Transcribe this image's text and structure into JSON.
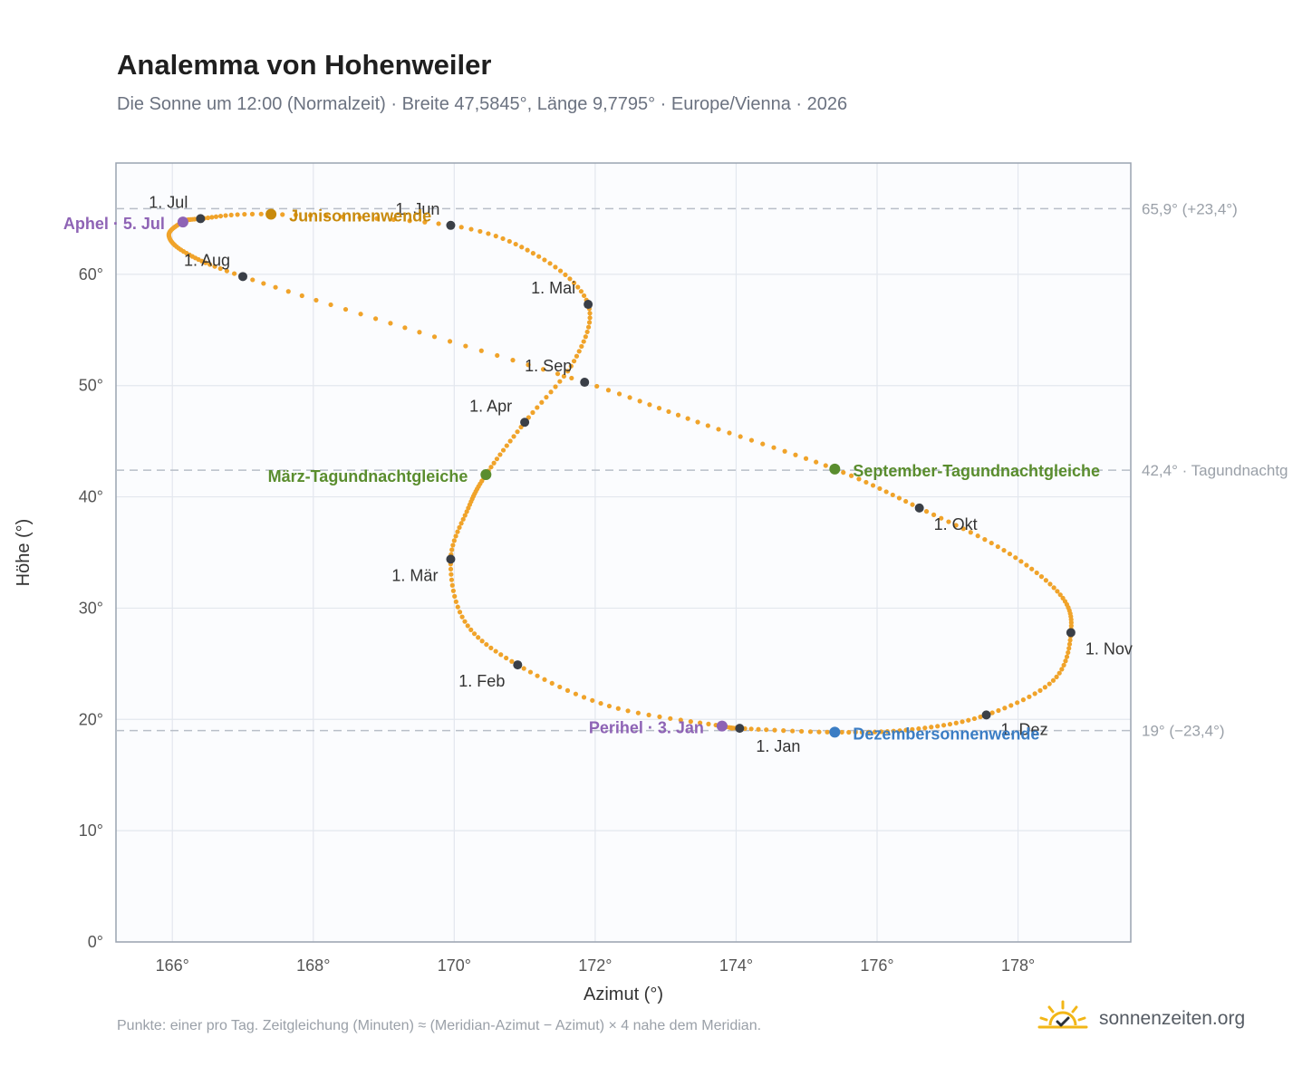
{
  "header": {
    "title": "Analemma von Hohenweiler",
    "subtitle": "Die Sonne um 12:00 (Normalzeit) · Breite 47,5845°, Länge 9,7795° · Europe/Vienna · 2026"
  },
  "footer": {
    "note": "Punkte: einer pro Tag. Zeitgleichung (Minuten) ≈ (Meridian-Azimut − Azimut) × 4 nahe dem Meridian.",
    "brand": "sonnenzeiten.org",
    "brand_icon": "sun-logo-icon"
  },
  "chart_data": {
    "type": "scatter",
    "xlabel": "Azimut (°)",
    "ylabel": "Höhe (°)",
    "xlim": [
      165.2,
      179.6
    ],
    "ylim": [
      0,
      70
    ],
    "xticks": [
      166,
      168,
      170,
      172,
      174,
      176,
      178
    ],
    "yticks": [
      0,
      10,
      20,
      30,
      40,
      50,
      60
    ],
    "x_tick_labels": [
      "166°",
      "168°",
      "170°",
      "172°",
      "174°",
      "176°",
      "178°"
    ],
    "y_tick_labels": [
      "0°",
      "10°",
      "20°",
      "30°",
      "40°",
      "50°",
      "60°"
    ],
    "grid": true,
    "curve_color": "#f0a32a",
    "marker_color": "#3a3f47",
    "reference_lines": [
      {
        "y": 65.9,
        "label": "65,9° (+23,4°)"
      },
      {
        "y": 42.4,
        "label": "42,4° · Tagundnachtg"
      },
      {
        "y": 19.0,
        "label": "19° (−23,4°)"
      }
    ],
    "month_markers": [
      {
        "label": "1. Jan",
        "x": 174.05,
        "y": 19.2
      },
      {
        "label": "1. Feb",
        "x": 170.9,
        "y": 24.9
      },
      {
        "label": "1. Mär",
        "x": 169.95,
        "y": 34.4
      },
      {
        "label": "1. Apr",
        "x": 171.0,
        "y": 46.7
      },
      {
        "label": "1. Mai",
        "x": 171.9,
        "y": 57.3
      },
      {
        "label": "1. Jun",
        "x": 169.95,
        "y": 64.4
      },
      {
        "label": "1. Jul",
        "x": 166.4,
        "y": 65.0
      },
      {
        "label": "1. Aug",
        "x": 167.0,
        "y": 59.8
      },
      {
        "label": "1. Sep",
        "x": 171.85,
        "y": 50.3
      },
      {
        "label": "1. Okt",
        "x": 176.6,
        "y": 39.0
      },
      {
        "label": "1. Nov",
        "x": 178.75,
        "y": 27.8
      },
      {
        "label": "1. Dez",
        "x": 177.55,
        "y": 20.4
      }
    ],
    "events": [
      {
        "label": "Junisonnenwende",
        "x": 167.4,
        "y": 65.4,
        "color": "#c88a0c"
      },
      {
        "label": "Aphel · 5. Jul",
        "x": 166.15,
        "y": 64.7,
        "color": "#8e63b5"
      },
      {
        "label": "März-Tagundnachtgleiche",
        "x": 170.45,
        "y": 42.0,
        "color": "#5a8d2e"
      },
      {
        "label": "September-Tagundnachtgleiche",
        "x": 175.4,
        "y": 42.5,
        "color": "#5a8d2e"
      },
      {
        "label": "Perihel · 3. Jan",
        "x": 173.8,
        "y": 19.4,
        "color": "#8e63b5"
      },
      {
        "label": "Dezembersonnenwende",
        "x": 175.4,
        "y": 18.85,
        "color": "#3b7dc4"
      }
    ],
    "path_points": [
      [
        175.4,
        18.85
      ],
      [
        174.05,
        19.2
      ],
      [
        173.8,
        19.4
      ],
      [
        172.2,
        21.2
      ],
      [
        170.9,
        24.9
      ],
      [
        170.15,
        28.8
      ],
      [
        169.95,
        34.4
      ],
      [
        170.2,
        39.0
      ],
      [
        170.45,
        42.0
      ],
      [
        171.0,
        46.7
      ],
      [
        171.7,
        52.2
      ],
      [
        171.9,
        57.3
      ],
      [
        171.2,
        61.6
      ],
      [
        169.95,
        64.4
      ],
      [
        167.4,
        65.4
      ],
      [
        166.4,
        65.0
      ],
      [
        166.15,
        64.7
      ],
      [
        165.95,
        63.5
      ],
      [
        166.2,
        61.9
      ],
      [
        167.0,
        59.8
      ],
      [
        169.3,
        55.2
      ],
      [
        171.85,
        50.3
      ],
      [
        173.6,
        46.4
      ],
      [
        175.4,
        42.5
      ],
      [
        176.6,
        39.0
      ],
      [
        177.8,
        35.2
      ],
      [
        178.6,
        31.2
      ],
      [
        178.75,
        27.8
      ],
      [
        178.5,
        23.5
      ],
      [
        177.55,
        20.4
      ],
      [
        176.5,
        19.1
      ],
      [
        175.4,
        18.85
      ]
    ]
  }
}
